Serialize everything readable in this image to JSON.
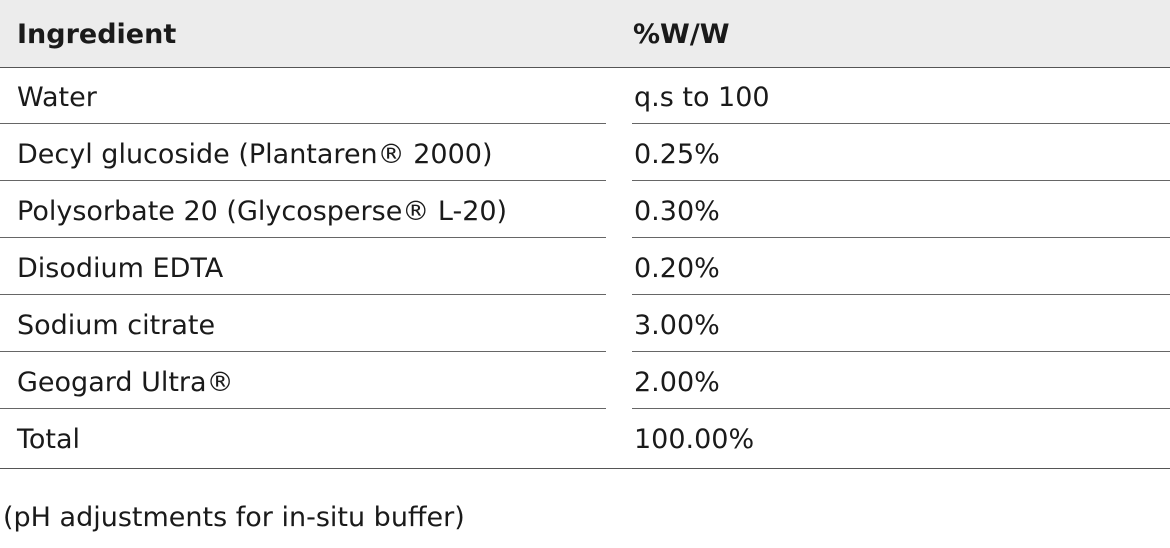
{
  "table": {
    "columns": [
      "Ingredient",
      "%W/W"
    ],
    "rows": [
      {
        "ingredient": "Water",
        "value": "q.s to 100"
      },
      {
        "ingredient": "Decyl glucoside (Plantaren® 2000)",
        "value": "0.25%"
      },
      {
        "ingredient": "Polysorbate 20 (Glycosperse® L-20)",
        "value": "0.30%"
      },
      {
        "ingredient": "Disodium EDTA",
        "value": "0.20%"
      },
      {
        "ingredient": "Sodium citrate",
        "value": "3.00%"
      },
      {
        "ingredient": "Geogard Ultra®",
        "value": "2.00%"
      },
      {
        "ingredient": "Total",
        "value": "100.00%"
      }
    ]
  },
  "note": "(pH adjustments for in-situ buffer)"
}
